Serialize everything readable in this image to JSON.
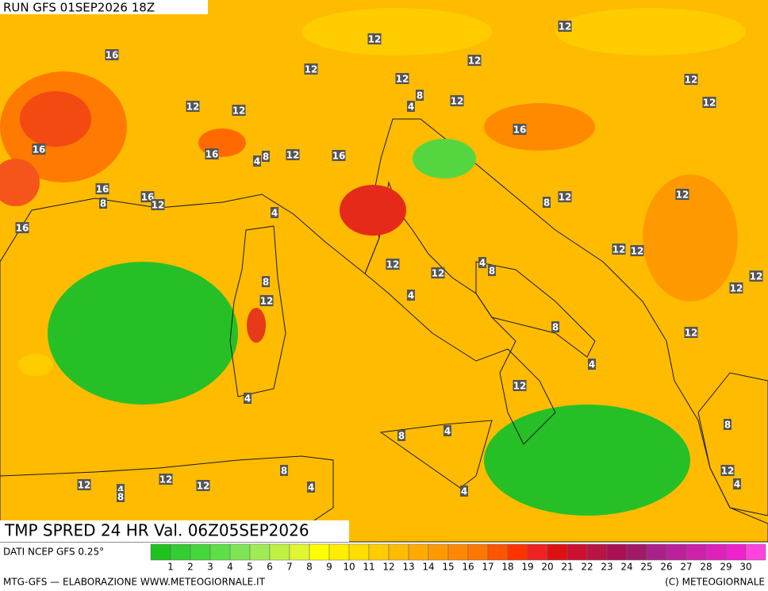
{
  "header": {
    "run": "RUN GFS 01SEP2026 18Z"
  },
  "map": {
    "title": "TMP SPRED 24 HR Val. 06Z05SEP2026",
    "contour_labels": [
      12,
      12,
      16,
      12,
      12,
      12,
      8,
      12,
      4,
      12,
      12,
      12,
      12,
      16,
      16,
      16,
      4,
      8,
      12,
      16,
      16,
      8,
      16,
      12,
      12,
      8,
      12,
      4,
      16,
      12,
      12,
      12,
      4,
      8,
      12,
      8,
      12,
      4,
      12,
      12,
      8,
      12,
      4,
      4,
      12,
      8,
      8,
      4,
      8,
      12,
      4,
      8,
      12,
      12,
      4,
      4,
      12,
      4
    ]
  },
  "legend": {
    "levels": [
      1,
      2,
      3,
      4,
      5,
      6,
      7,
      8,
      9,
      10,
      11,
      12,
      13,
      14,
      15,
      16,
      17,
      18,
      19,
      20,
      21,
      22,
      23,
      24,
      25,
      26,
      27,
      28,
      29,
      30
    ],
    "colors": [
      "#1fc21f",
      "#33cc33",
      "#44d63a",
      "#5edf48",
      "#7fe455",
      "#9feb55",
      "#c0f044",
      "#e0f533",
      "#ffff00",
      "#ffee00",
      "#ffdd00",
      "#ffcc00",
      "#ffbb00",
      "#ffaa00",
      "#ff9900",
      "#ff8800",
      "#ff7700",
      "#ff5500",
      "#ff3300",
      "#ee2222",
      "#dd1111",
      "#cc1133",
      "#b81444",
      "#aa1155",
      "#a01a66",
      "#aa2288",
      "#bb2299",
      "#cc22aa",
      "#dd22bb",
      "#ee22cc",
      "#ff44dd"
    ]
  },
  "footer": {
    "source": "DATI NCEP GFS 0.25°",
    "credit": "MTG-GFS — ELABORAZIONE WWW.METEOGIORNALE.IT",
    "copyright": "(C) METEOGIORNALE"
  }
}
